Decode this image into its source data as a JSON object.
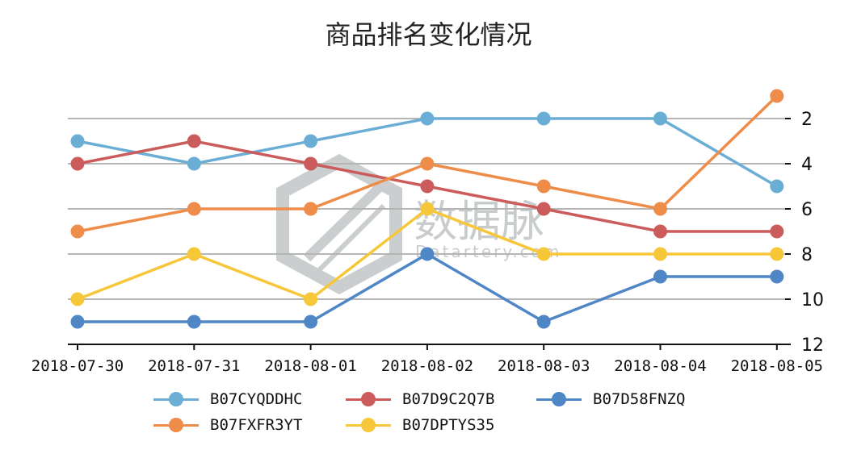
{
  "chart_data": {
    "type": "line",
    "title": "商品排名变化情况",
    "xlabel": "",
    "ylabel": "",
    "categories": [
      "2018-07-30",
      "2018-07-31",
      "2018-08-01",
      "2018-08-02",
      "2018-08-03",
      "2018-08-04",
      "2018-08-05"
    ],
    "y_axis": {
      "position": "right",
      "inverted": true,
      "ylim": [
        12,
        1
      ],
      "ticks": [
        2,
        4,
        6,
        8,
        10,
        12
      ]
    },
    "grid": "horizontal",
    "legend_placement": "bottom",
    "series": [
      {
        "name": "B07CYQDDHC",
        "color": "#6aaed6",
        "values": [
          3,
          4,
          3,
          2,
          2,
          2,
          5
        ]
      },
      {
        "name": "B07D9C2Q7B",
        "color": "#cc5c5c",
        "values": [
          4,
          3,
          4,
          5,
          6,
          7,
          7
        ]
      },
      {
        "name": "B07D58FNZQ",
        "color": "#4f86c6",
        "values": [
          11,
          11,
          11,
          8,
          11,
          9,
          9
        ]
      },
      {
        "name": "B07FXFR3YT",
        "color": "#ee8c4a",
        "values": [
          7,
          6,
          6,
          4,
          5,
          6,
          1
        ]
      },
      {
        "name": "B07DPTYS35",
        "color": "#f7c73a",
        "values": [
          10,
          8,
          10,
          6,
          8,
          8,
          8
        ]
      }
    ]
  },
  "watermark": {
    "text_cn": "数据脉",
    "text_en": "Datartery.com"
  }
}
